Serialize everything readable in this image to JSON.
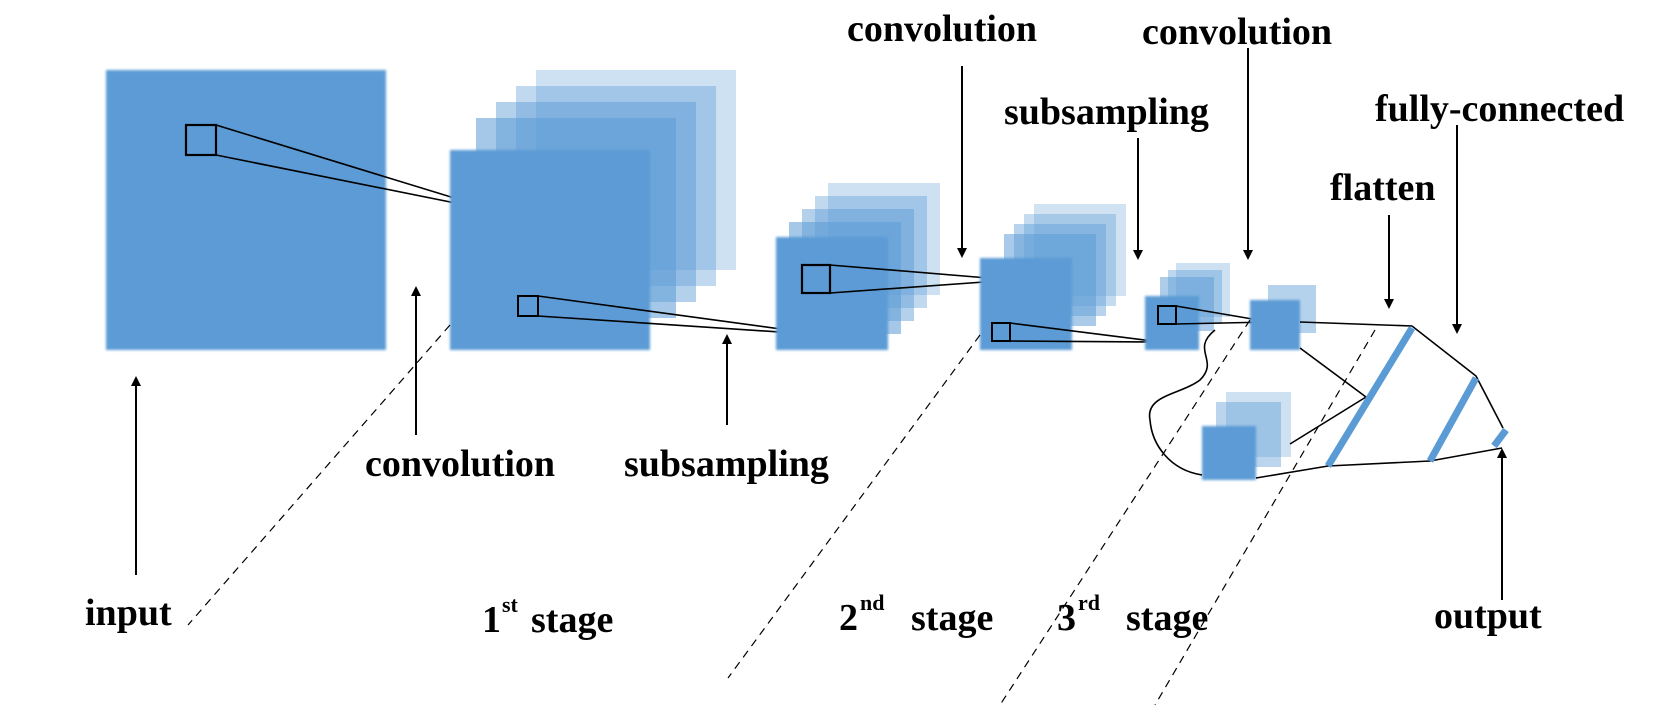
{
  "colors": {
    "feature_map": "#5b9bd5",
    "line": "#000000"
  },
  "labels": {
    "input": "input",
    "conv1": "convolution",
    "sub1": "subsampling",
    "conv2": "convolution",
    "sub2": "subsampling",
    "conv3": "convolution",
    "flatten": "flatten",
    "fc": "fully-connected",
    "output": "output"
  },
  "stages": [
    {
      "num": "1",
      "sup": "st",
      "word": "stage"
    },
    {
      "num": "2",
      "sup": "nd",
      "word": "stage"
    },
    {
      "num": "3",
      "sup": "rd",
      "word": "stage"
    }
  ]
}
